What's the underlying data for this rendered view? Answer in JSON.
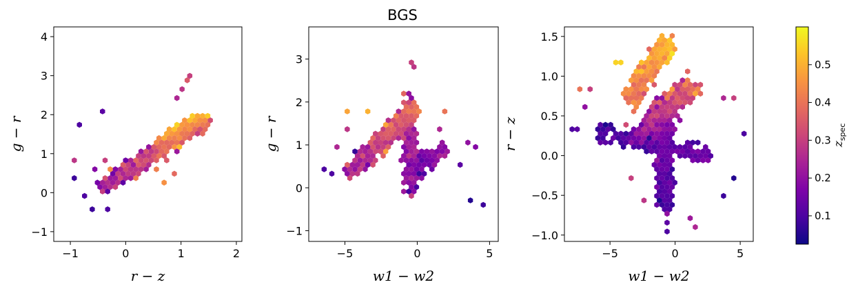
{
  "figure_title": "BGS",
  "chart_data": [
    {
      "type": "scatter",
      "subtype": "hexbin",
      "xlabel": "r − z",
      "ylabel": "g − r",
      "xlim": [
        -1.3,
        2.1
      ],
      "ylim": [
        -1.25,
        4.25
      ],
      "xticks": [
        -1,
        0,
        1,
        2
      ],
      "yticks": [
        -1,
        0,
        1,
        2,
        3,
        4
      ],
      "grid": false,
      "clusters": [
        {
          "x0": -0.4,
          "y0": 0.15,
          "x1": 1.45,
          "y1": 1.85,
          "width": 0.5,
          "n": 650,
          "zmin": 0.06,
          "zmax": 0.58
        },
        {
          "x0": 0.6,
          "y0": 1.2,
          "x1": 1.4,
          "y1": 1.9,
          "width": 0.35,
          "n": 200,
          "zmin": 0.4,
          "zmax": 0.6
        }
      ],
      "points": [
        {
          "x": -0.45,
          "y": 2.05,
          "z": 0.12
        },
        {
          "x": -0.85,
          "y": 1.78,
          "z": 0.1
        },
        {
          "x": -0.95,
          "y": 0.35,
          "z": 0.08
        },
        {
          "x": -0.9,
          "y": 0.88,
          "z": 0.28
        },
        {
          "x": -0.7,
          "y": -0.05,
          "z": 0.1
        },
        {
          "x": 1.1,
          "y": 2.85,
          "z": 0.35
        },
        {
          "x": 1.15,
          "y": 2.95,
          "z": 0.3
        },
        {
          "x": 1.05,
          "y": 2.6,
          "z": 0.28
        },
        {
          "x": 0.95,
          "y": 2.45,
          "z": 0.25
        },
        {
          "x": 0.6,
          "y": 0.55,
          "z": 0.42
        },
        {
          "x": 0.7,
          "y": 0.3,
          "z": 0.45
        },
        {
          "x": 0.85,
          "y": 0.45,
          "z": 0.38
        },
        {
          "x": -0.35,
          "y": 0.85,
          "z": 0.3
        },
        {
          "x": -0.55,
          "y": 0.6,
          "z": 0.18
        },
        {
          "x": -0.25,
          "y": 0.6,
          "z": 0.45
        },
        {
          "x": -0.6,
          "y": -0.45,
          "z": 0.08
        },
        {
          "x": -0.3,
          "y": -0.45,
          "z": 0.1
        }
      ]
    },
    {
      "type": "scatter",
      "subtype": "hexbin",
      "xlabel": "w1 − w2",
      "ylabel": "g − r",
      "xlim": [
        -7.5,
        5.6
      ],
      "ylim": [
        -1.25,
        3.75
      ],
      "xticks": [
        -5,
        0,
        5
      ],
      "yticks": [
        -1,
        0,
        1,
        2,
        3
      ],
      "grid": false,
      "clusters": [
        {
          "x0": -4.5,
          "y0": 0.4,
          "x1": -0.3,
          "y1": 1.8,
          "width": 0.9,
          "n": 550,
          "zmin": 0.05,
          "zmax": 0.58
        },
        {
          "x0": -0.5,
          "y0": 0.0,
          "x1": -0.5,
          "y1": 2.1,
          "width": 0.9,
          "n": 250,
          "zmin": 0.05,
          "zmax": 0.45
        },
        {
          "x0": -0.3,
          "y0": 0.5,
          "x1": 2.0,
          "y1": 0.9,
          "width": 0.7,
          "n": 150,
          "zmin": 0.05,
          "zmax": 0.3
        }
      ],
      "points": [
        {
          "x": -0.5,
          "y": 2.95,
          "z": 0.3
        },
        {
          "x": -0.4,
          "y": 2.85,
          "z": 0.28
        },
        {
          "x": -4.7,
          "y": 1.8,
          "z": 0.48
        },
        {
          "x": -3.5,
          "y": 1.75,
          "z": 0.5
        },
        {
          "x": -4.7,
          "y": 1.35,
          "z": 0.28
        },
        {
          "x": -5.5,
          "y": 1.0,
          "z": 0.25
        },
        {
          "x": -6.5,
          "y": 0.45,
          "z": 0.1
        },
        {
          "x": -6.0,
          "y": 0.3,
          "z": 0.1
        },
        {
          "x": 3.5,
          "y": -0.28,
          "z": 0.05
        },
        {
          "x": 4.6,
          "y": -0.42,
          "z": 0.08
        },
        {
          "x": 4.0,
          "y": 1.0,
          "z": 0.18
        },
        {
          "x": 3.5,
          "y": 1.05,
          "z": 0.2
        },
        {
          "x": 1.4,
          "y": 1.35,
          "z": 0.25
        },
        {
          "x": 3.0,
          "y": 0.5,
          "z": 0.12
        },
        {
          "x": 1.8,
          "y": 1.75,
          "z": 0.4
        }
      ]
    },
    {
      "type": "scatter",
      "subtype": "hexbin",
      "xlabel": "w1 − w2",
      "ylabel": "r − z",
      "xlim": [
        -8.5,
        6.0
      ],
      "ylim": [
        -1.08,
        1.62
      ],
      "xticks": [
        -5,
        0,
        5
      ],
      "yticks": [
        -1.0,
        -0.5,
        0.0,
        0.5,
        1.0,
        1.5
      ],
      "grid": false,
      "clusters": [
        {
          "x0": -3.5,
          "y0": 0.7,
          "x1": -0.6,
          "y1": 1.45,
          "width": 1.2,
          "n": 350,
          "zmin": 0.3,
          "zmax": 0.6
        },
        {
          "x0": -3.0,
          "y0": 0.2,
          "x1": 1.3,
          "y1": 0.9,
          "width": 1.6,
          "n": 400,
          "zmin": 0.1,
          "zmax": 0.5
        },
        {
          "x0": -0.8,
          "y0": -0.6,
          "x1": -0.8,
          "y1": 0.5,
          "width": 1.0,
          "n": 350,
          "zmin": 0.03,
          "zmax": 0.25
        },
        {
          "x0": -6.0,
          "y0": 0.3,
          "x1": 2.5,
          "y1": 0.0,
          "width": 1.0,
          "n": 220,
          "zmin": 0.03,
          "zmax": 0.2
        }
      ],
      "points": [
        {
          "x": -7.5,
          "y": 0.85,
          "z": 0.4
        },
        {
          "x": -6.5,
          "y": 0.85,
          "z": 0.3
        },
        {
          "x": -7.0,
          "y": 0.6,
          "z": 0.2
        },
        {
          "x": -8.0,
          "y": 0.32,
          "z": 0.1
        },
        {
          "x": -7.6,
          "y": 0.32,
          "z": 0.12
        },
        {
          "x": -4.5,
          "y": 1.15,
          "z": 0.55
        },
        {
          "x": -4.2,
          "y": 1.15,
          "z": 0.55
        },
        {
          "x": -0.6,
          "y": -0.95,
          "z": 0.1
        },
        {
          "x": -0.6,
          "y": -0.85,
          "z": 0.12
        },
        {
          "x": -0.8,
          "y": -0.72,
          "z": 0.2
        },
        {
          "x": 4.6,
          "y": -0.3,
          "z": 0.05
        },
        {
          "x": 5.3,
          "y": 0.27,
          "z": 0.1
        },
        {
          "x": 3.6,
          "y": -0.48,
          "z": 0.08
        },
        {
          "x": 3.8,
          "y": 0.75,
          "z": 0.25
        },
        {
          "x": 4.5,
          "y": 0.75,
          "z": 0.3
        },
        {
          "x": 1.5,
          "y": -0.9,
          "z": 0.25
        },
        {
          "x": 1.2,
          "y": -0.8,
          "z": 0.22
        },
        {
          "x": -3.5,
          "y": -0.3,
          "z": 0.3
        },
        {
          "x": -2.5,
          "y": -0.55,
          "z": 0.28
        }
      ]
    }
  ],
  "colorbar": {
    "label": "z",
    "label_sub": "spec",
    "colormap": "plasma",
    "range": [
      0.025,
      0.6
    ],
    "ticks": [
      0.1,
      0.2,
      0.3,
      0.4,
      0.5
    ]
  }
}
